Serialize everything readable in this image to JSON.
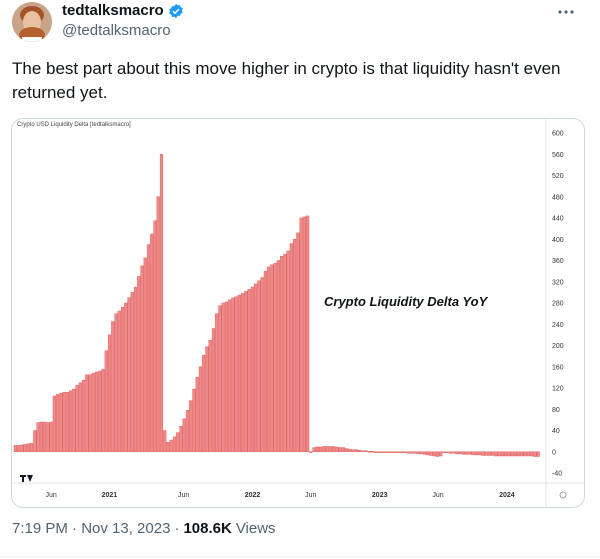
{
  "tweet": {
    "display_name": "tedtalksmacro",
    "handle": "@tedtalksmacro",
    "text": "The best part about this move higher in crypto is that liquidity hasn't even returned yet.",
    "timestamp": "7:19 PM · Nov 13, 2023",
    "separator": "·",
    "views_count": "108.6K",
    "views_label": "Views"
  },
  "icons": {
    "verified": "verified-badge-icon",
    "more": "more-options-icon",
    "tradingview": "tradingview-logo-icon"
  },
  "colors": {
    "bar": "#ef8a8a",
    "bar_stroke": "#d9534f",
    "verified": "#1d9bf0"
  },
  "chart_data": {
    "type": "bar",
    "title": "Crypto USD Liquidity Delta [tedtalksmacro]",
    "annotation": "Crypto Liquidity Delta YoY",
    "ylim": [
      -40,
      600
    ],
    "y_ticks": [
      "600",
      "560",
      "520",
      "480",
      "440",
      "400",
      "360",
      "320",
      "280",
      "240",
      "200",
      "160",
      "120",
      "80",
      "40",
      "0",
      "-40"
    ],
    "x_ticks": [
      {
        "label": "Jun",
        "t": 0.07,
        "bold": false
      },
      {
        "label": "2021",
        "t": 0.18,
        "bold": true
      },
      {
        "label": "Jun",
        "t": 0.32,
        "bold": false
      },
      {
        "label": "2022",
        "t": 0.45,
        "bold": true
      },
      {
        "label": "Jun",
        "t": 0.56,
        "bold": false
      },
      {
        "label": "2023",
        "t": 0.69,
        "bold": true
      },
      {
        "label": "Jun",
        "t": 0.8,
        "bold": false
      },
      {
        "label": "2024",
        "t": 0.93,
        "bold": true
      }
    ],
    "values": [
      12,
      12,
      13,
      14,
      15,
      16,
      40,
      55,
      56,
      56,
      55,
      56,
      105,
      108,
      110,
      112,
      112,
      115,
      118,
      125,
      130,
      135,
      145,
      145,
      148,
      150,
      152,
      155,
      190,
      220,
      245,
      260,
      265,
      272,
      280,
      290,
      300,
      310,
      330,
      350,
      365,
      390,
      410,
      435,
      480,
      560,
      40,
      18,
      22,
      28,
      36,
      48,
      62,
      78,
      96,
      118,
      140,
      160,
      182,
      198,
      210,
      232,
      260,
      275,
      280,
      282,
      286,
      290,
      292,
      295,
      298,
      302,
      306,
      310,
      316,
      322,
      328,
      340,
      348,
      352,
      355,
      360,
      368,
      372,
      378,
      392,
      400,
      412,
      440,
      442,
      444,
      -2,
      8,
      9,
      9,
      10,
      10,
      10,
      10,
      9,
      8,
      8,
      6,
      5,
      4,
      4,
      3,
      2,
      2,
      1,
      1,
      0,
      0,
      0,
      -1,
      -1,
      -1,
      -2,
      -2,
      -2,
      -2,
      -3,
      -3,
      -3,
      -4,
      -4,
      -5,
      -6,
      -7,
      -8,
      -9,
      -8,
      -1,
      -2,
      -3,
      -3,
      -4,
      -4,
      -5,
      -5,
      -5,
      -6,
      -6,
      -6,
      -7,
      -7,
      -7,
      -7,
      -8,
      -8,
      -8,
      -8,
      -8,
      -8,
      -8,
      -8,
      -8,
      -8,
      -8,
      -8,
      -9,
      -9
    ]
  }
}
